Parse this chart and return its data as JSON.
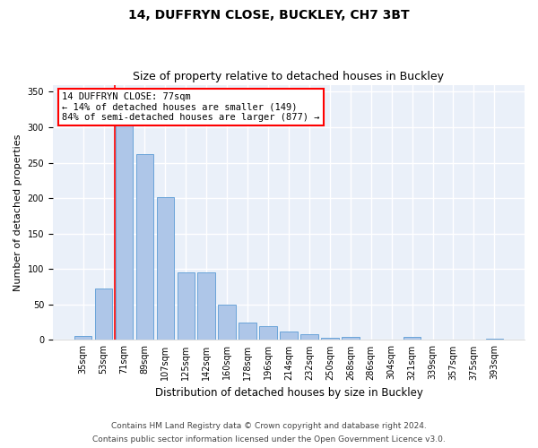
{
  "title1": "14, DUFFRYN CLOSE, BUCKLEY, CH7 3BT",
  "title2": "Size of property relative to detached houses in Buckley",
  "xlabel": "Distribution of detached houses by size in Buckley",
  "ylabel": "Number of detached properties",
  "categories": [
    "35sqm",
    "53sqm",
    "71sqm",
    "89sqm",
    "107sqm",
    "125sqm",
    "142sqm",
    "160sqm",
    "178sqm",
    "196sqm",
    "214sqm",
    "232sqm",
    "250sqm",
    "268sqm",
    "286sqm",
    "304sqm",
    "321sqm",
    "339sqm",
    "357sqm",
    "375sqm",
    "393sqm"
  ],
  "values": [
    5,
    72,
    330,
    262,
    202,
    95,
    95,
    50,
    25,
    20,
    12,
    8,
    3,
    4,
    1,
    0,
    4,
    0,
    0,
    0,
    2
  ],
  "bar_color": "#aec6e8",
  "bar_edge_color": "#5b9bd5",
  "annotation_text": "14 DUFFRYN CLOSE: 77sqm\n← 14% of detached houses are smaller (149)\n84% of semi-detached houses are larger (877) →",
  "annotation_box_color": "white",
  "annotation_box_edge": "red",
  "vline_color": "red",
  "vline_x_index": 2,
  "background_color": "#eaf0f9",
  "grid_color": "white",
  "footer1": "Contains HM Land Registry data © Crown copyright and database right 2024.",
  "footer2": "Contains public sector information licensed under the Open Government Licence v3.0.",
  "ylim": [
    0,
    360
  ],
  "title1_fontsize": 10,
  "title2_fontsize": 9,
  "xlabel_fontsize": 8.5,
  "ylabel_fontsize": 8,
  "tick_fontsize": 7,
  "annotation_fontsize": 7.5,
  "footer_fontsize": 6.5
}
